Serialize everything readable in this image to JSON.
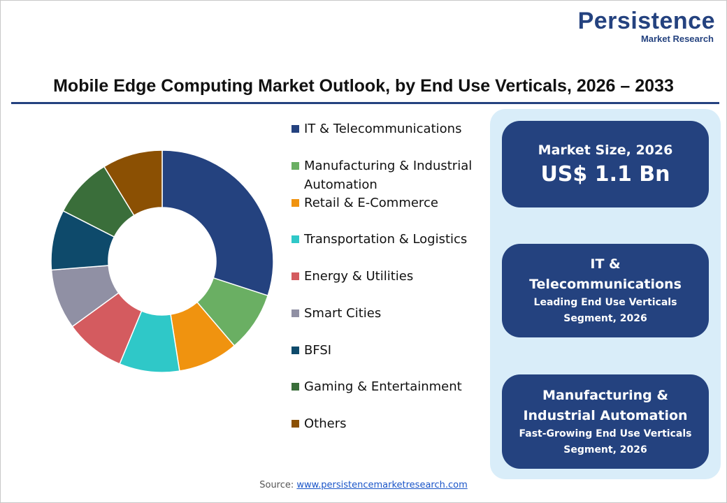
{
  "logo": {
    "name": "Persistence",
    "tagline": "Market Research"
  },
  "chart_data": {
    "type": "donut",
    "title": "Mobile Edge Computing Market Outlook, by End Use Verticals, 2026 – 2033",
    "categories": [
      "IT & Telecommunications",
      "Manufacturing & Industrial Automation",
      "Retail & E-Commerce",
      "Transportation & Logistics",
      "Energy & Utilities",
      "Smart Cities",
      "BFSI",
      "Gaming & Entertainment",
      "Others"
    ],
    "values": [
      30,
      8.75,
      8.75,
      8.75,
      8.75,
      8.75,
      8.75,
      8.75,
      8.75
    ],
    "colors": [
      "#24427f",
      "#6aaf63",
      "#f0930f",
      "#2fc8c8",
      "#d45b5f",
      "#9090a4",
      "#0e4a6b",
      "#3a6e3a",
      "#8b5003"
    ]
  },
  "panels": [
    {
      "heading": "Market Size, 2026",
      "value": "US$ 1.1 Bn"
    },
    {
      "heading": "IT & Telecommunications",
      "note": "Leading End Use Verticals Segment, 2026"
    },
    {
      "heading": "Manufacturing & Industrial Automation",
      "note": "Fast-Growing End Use Verticals Segment, 2026"
    }
  ],
  "source": {
    "label": "Source:",
    "link": "www.persistencemarketresearch.com"
  }
}
